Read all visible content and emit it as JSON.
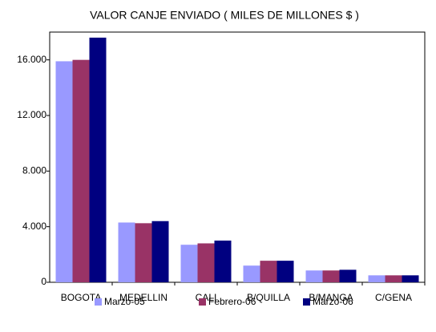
{
  "chart_data": {
    "type": "bar",
    "title": "VALOR CANJE ENVIADO ( MILES DE MILLONES $ )",
    "categories": [
      "BOGOTA",
      "MEDELLIN",
      "CALI",
      "B/QUILLA",
      "B/MANGA",
      "C/GENA"
    ],
    "series": [
      {
        "name": "Marzo-05",
        "color": "#9999ff",
        "values": [
          15900,
          4300,
          2700,
          1200,
          850,
          500
        ]
      },
      {
        "name": "Febrero-06",
        "color": "#993366",
        "values": [
          16000,
          4250,
          2800,
          1550,
          850,
          500
        ]
      },
      {
        "name": "Marzo-06",
        "color": "#000080",
        "values": [
          17600,
          4400,
          3000,
          1550,
          900,
          500
        ]
      }
    ],
    "ylim": [
      0,
      18000
    ],
    "yticks": [
      0,
      {
        "value": 4000,
        "label": "4.000"
      },
      {
        "value": 8000,
        "label": "8.000"
      },
      {
        "value": 12000,
        "label": "12.000"
      },
      {
        "value": 16000,
        "label": "16.000"
      }
    ],
    "grid": false,
    "legend": "bottom"
  }
}
